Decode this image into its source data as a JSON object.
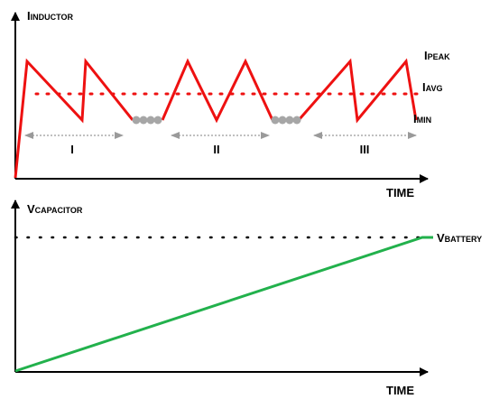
{
  "colors": {
    "inductor_current": "#ee1111",
    "capacitor_voltage": "#22b14c",
    "axis": "#000000",
    "interval_arrow": "#9a9a9a",
    "idle_marker": "#a6a6a6"
  },
  "top_graph": {
    "y_axis": {
      "main": "I",
      "sub": "INDUCTOR"
    },
    "x_axis": "TIME",
    "levels": [
      {
        "main": "I",
        "sub": "PEAK"
      },
      {
        "main": "I",
        "sub": "AVG"
      },
      {
        "main": "I",
        "sub": "MIN"
      }
    ],
    "intervals": [
      "I",
      "II",
      "III"
    ]
  },
  "bottom_graph": {
    "y_axis": {
      "main": "V",
      "sub": "CAPACITOR"
    },
    "x_axis": "TIME",
    "target": {
      "main": "V",
      "sub": "BATTERY"
    }
  }
}
